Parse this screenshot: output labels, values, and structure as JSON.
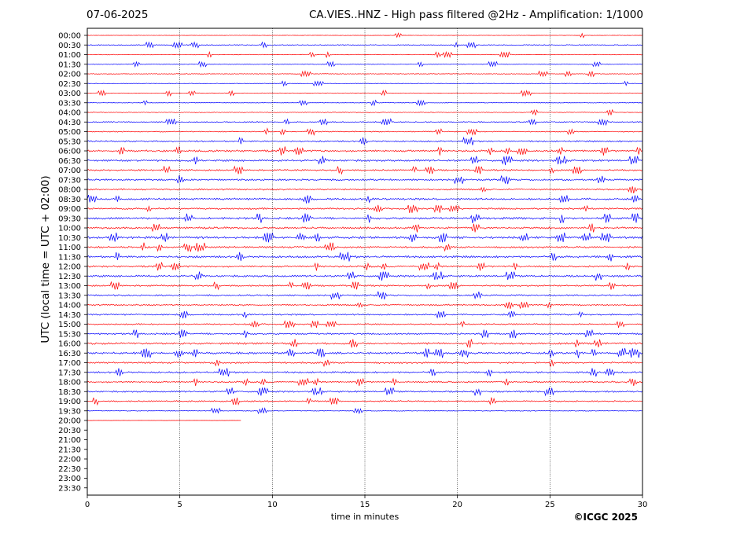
{
  "header": {
    "date": "07-06-2025",
    "title": "CA.VIES..HNZ - High pass filtered @2Hz - Amplification: 1/1000"
  },
  "footer": {
    "copyright": "©ICGC 2025"
  },
  "chart_data": {
    "type": "line",
    "title": "CA.VIES..HNZ - High pass filtered @2Hz - Amplification: 1/1000",
    "date": "07-06-2025",
    "xlabel": "time in minutes",
    "ylabel": "UTC (local time = UTC + 02:00)",
    "xlim": [
      0,
      30
    ],
    "x_ticks": [
      0,
      5,
      10,
      15,
      20,
      25,
      30
    ],
    "x_tick_labels": [
      "0",
      "5",
      "10",
      "15",
      "20",
      "25",
      "30"
    ],
    "grid": "vertical dotted lines at 5-minute ticks",
    "rows": [
      "00:00",
      "00:30",
      "01:00",
      "01:30",
      "02:00",
      "02:30",
      "03:00",
      "03:30",
      "04:00",
      "04:30",
      "05:00",
      "05:30",
      "06:00",
      "06:30",
      "07:00",
      "07:30",
      "08:00",
      "08:30",
      "09:00",
      "09:30",
      "10:00",
      "10:30",
      "11:00",
      "11:30",
      "12:00",
      "12:30",
      "13:00",
      "13:30",
      "14:00",
      "14:30",
      "15:00",
      "15:30",
      "16:00",
      "16:30",
      "17:00",
      "17:30",
      "18:00",
      "18:30",
      "19:00",
      "19:30",
      "20:00",
      "20:30",
      "21:00",
      "21:30",
      "22:00",
      "22:30",
      "23:00",
      "23:30"
    ],
    "row_colors": [
      "#ff0000",
      "#0000ff"
    ],
    "trace_end_minutes": [
      30,
      30,
      30,
      30,
      30,
      30,
      30,
      30,
      30,
      30,
      30,
      30,
      30,
      30,
      30,
      30,
      30,
      30,
      30,
      30,
      30,
      30,
      30,
      30,
      30,
      30,
      30,
      30,
      30,
      30,
      30,
      30,
      30,
      30,
      30,
      30,
      30,
      30,
      30,
      30,
      8.3,
      0,
      0,
      0,
      0,
      0,
      0,
      0
    ],
    "activity": [
      0.12,
      0.22,
      0.2,
      0.18,
      0.2,
      0.15,
      0.2,
      0.18,
      0.22,
      0.3,
      0.3,
      0.45,
      0.55,
      0.55,
      0.45,
      0.5,
      0.45,
      0.55,
      0.5,
      0.6,
      0.55,
      0.65,
      0.55,
      0.6,
      0.5,
      0.55,
      0.45,
      0.45,
      0.45,
      0.45,
      0.4,
      0.5,
      0.55,
      0.6,
      0.5,
      0.5,
      0.45,
      0.45,
      0.4,
      0.2,
      0.05,
      0,
      0,
      0,
      0,
      0,
      0,
      0
    ]
  }
}
